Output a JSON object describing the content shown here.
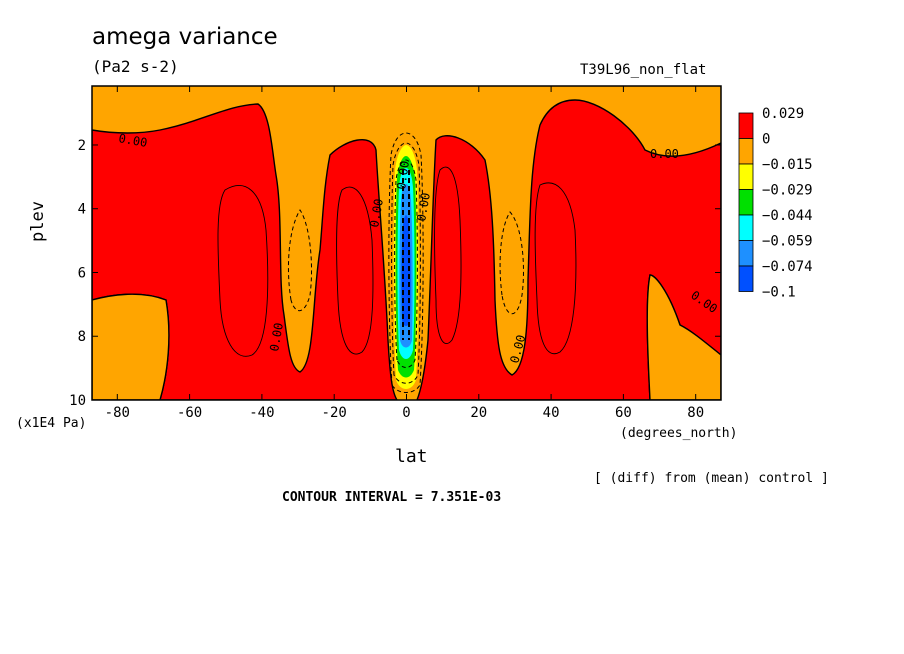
{
  "chart_data": {
    "type": "heatmap",
    "title": "amega variance",
    "units": "(Pa2 s-2)",
    "run_label": "T39L96_non_flat",
    "xlabel": "lat",
    "x_units": "(degrees_north)",
    "ylabel": "plev",
    "y_units": "(x1E4 Pa)",
    "xlim": [
      -87,
      87
    ],
    "ylim": [
      10,
      0.15
    ],
    "x_ticks": [
      -80,
      -60,
      -40,
      -20,
      0,
      20,
      40,
      60,
      80
    ],
    "y_ticks": [
      2,
      4,
      6,
      8,
      10
    ],
    "colorbar": {
      "labels": [
        "0.029",
        "0",
        "−0.015",
        "−0.029",
        "−0.044",
        "−0.059",
        "−0.074",
        "−0.1"
      ],
      "colors": [
        "#ff0000",
        "#ffa500",
        "#ffff00",
        "#00e000",
        "#00ffff",
        "#1e90ff",
        "#0050ff"
      ]
    },
    "contour_labels": [
      "0.00",
      "0.00",
      "0.00",
      "0.00",
      "0.00",
      "0.00",
      "0.00",
      "0.00"
    ],
    "annotation": "[ (diff) from (mean) control ]",
    "contour_interval": "CONTOUR INTERVAL = 7.351E-03"
  }
}
